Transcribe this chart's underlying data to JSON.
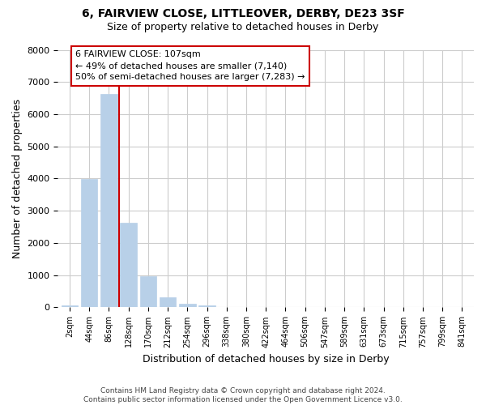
{
  "title": "6, FAIRVIEW CLOSE, LITTLEOVER, DERBY, DE23 3SF",
  "subtitle": "Size of property relative to detached houses in Derby",
  "xlabel": "Distribution of detached houses by size in Derby",
  "ylabel": "Number of detached properties",
  "bar_labels": [
    "2sqm",
    "44sqm",
    "86sqm",
    "128sqm",
    "170sqm",
    "212sqm",
    "254sqm",
    "296sqm",
    "338sqm",
    "380sqm",
    "422sqm",
    "464sqm",
    "506sqm",
    "547sqm",
    "589sqm",
    "631sqm",
    "673sqm",
    "715sqm",
    "757sqm",
    "799sqm",
    "841sqm"
  ],
  "bar_values": [
    50,
    3980,
    6620,
    2620,
    960,
    320,
    120,
    60,
    0,
    0,
    0,
    0,
    0,
    0,
    0,
    0,
    0,
    0,
    0,
    0,
    0
  ],
  "bar_color": "#b8d0e8",
  "bar_edge_color": "#b8d0e8",
  "vline_x_index": 2.5,
  "vline_color": "#cc0000",
  "annotation_line1": "6 FAIRVIEW CLOSE: 107sqm",
  "annotation_line2": "← 49% of detached houses are smaller (7,140)",
  "annotation_line3": "50% of semi-detached houses are larger (7,283) →",
  "annotation_box_edgecolor": "#cc0000",
  "annotation_box_facecolor": "#ffffff",
  "ylim": [
    0,
    8000
  ],
  "yticks": [
    0,
    1000,
    2000,
    3000,
    4000,
    5000,
    6000,
    7000,
    8000
  ],
  "footer": "Contains HM Land Registry data © Crown copyright and database right 2024.\nContains public sector information licensed under the Open Government Licence v3.0.",
  "bg_color": "#ffffff",
  "grid_color": "#cccccc"
}
